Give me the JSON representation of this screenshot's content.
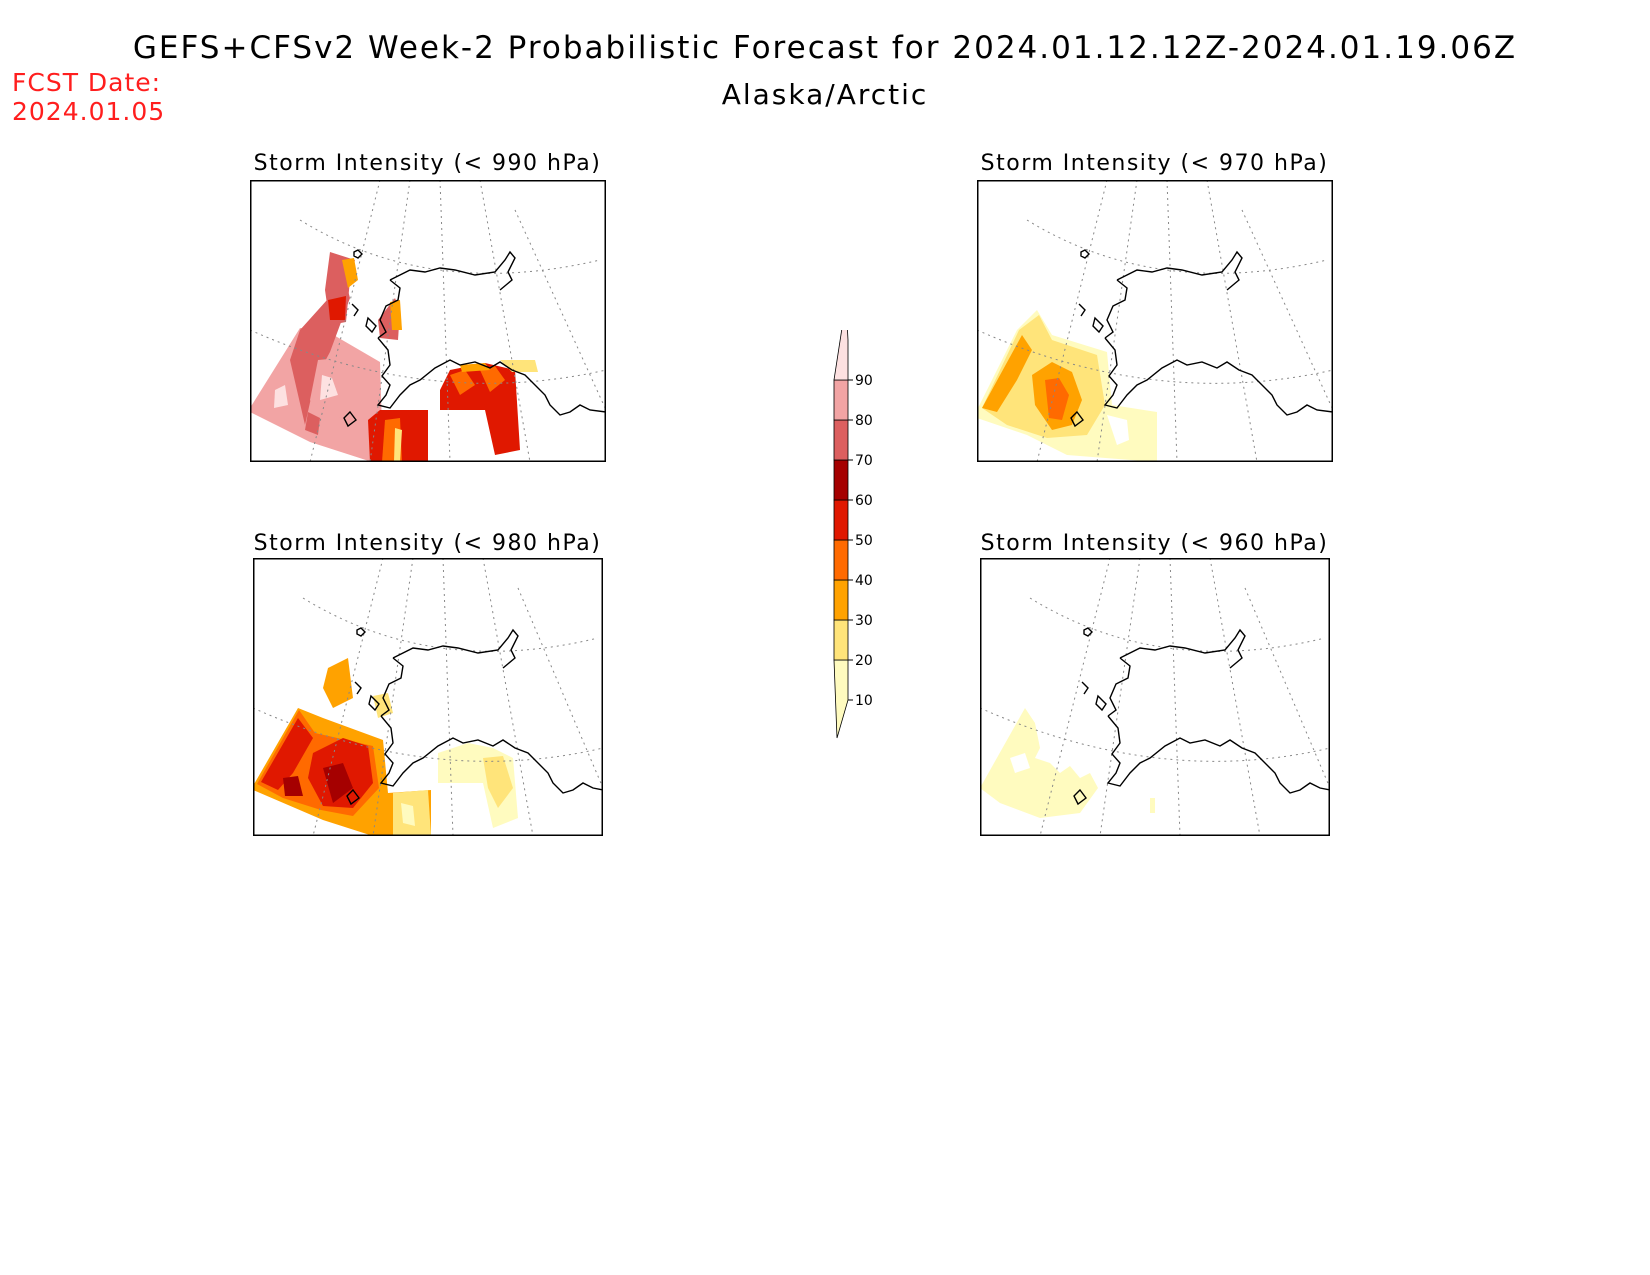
{
  "header": {
    "title": "GEFS+CFSv2 Week-2 Probabilistic Forecast for 2024.01.12.12Z-2024.01.19.06Z",
    "region": "Alaska/Arctic",
    "fcst_label": "FCST Date:",
    "fcst_date": "2024.01.05"
  },
  "panels": [
    {
      "id": "p990",
      "title": "Storm Intensity (< 990 hPa)",
      "threshold_hpa": 990
    },
    {
      "id": "p970",
      "title": "Storm Intensity (< 970 hPa)",
      "threshold_hpa": 970
    },
    {
      "id": "p980",
      "title": "Storm Intensity (< 980 hPa)",
      "threshold_hpa": 980
    },
    {
      "id": "p960",
      "title": "Storm Intensity (< 960 hPa)",
      "threshold_hpa": 960
    }
  ],
  "legend": {
    "levels": [
      "10",
      "20",
      "30",
      "40",
      "50",
      "60",
      "70",
      "80",
      "90"
    ],
    "colors": [
      "#fffbbf",
      "#ffe47a",
      "#ffa200",
      "#ff6a00",
      "#e01800",
      "#a50000",
      "#dc5f5f",
      "#f2a4a4",
      "#fde1e1"
    ]
  }
}
